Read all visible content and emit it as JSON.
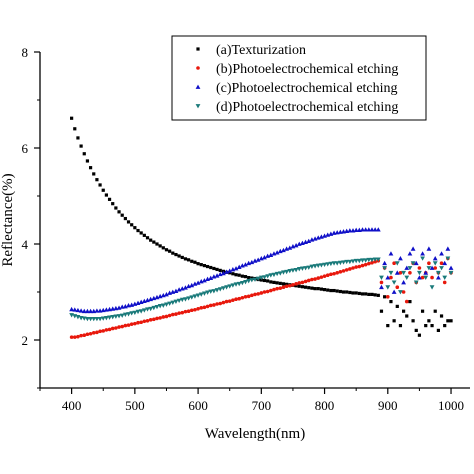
{
  "chart_data": {
    "type": "scatter",
    "xlabel": "Wavelength(nm)",
    "ylabel": "Reflectance(%)",
    "xlim": [
      350,
      1030
    ],
    "ylim": [
      1,
      8
    ],
    "x_ticks": [
      400,
      500,
      600,
      700,
      800,
      900,
      1000
    ],
    "y_ticks": [
      2,
      4,
      6,
      8
    ],
    "grid": false,
    "legend_position": "top-right",
    "series": [
      {
        "name": "(a)Texturization",
        "color": "#000000",
        "marker": "square",
        "x": [
          400,
          405,
          410,
          415,
          420,
          425,
          430,
          435,
          440,
          445,
          450,
          455,
          460,
          465,
          470,
          475,
          480,
          485,
          490,
          495,
          500,
          505,
          510,
          515,
          520,
          525,
          530,
          535,
          540,
          545,
          550,
          555,
          560,
          565,
          570,
          575,
          580,
          585,
          590,
          595,
          600,
          605,
          610,
          615,
          620,
          625,
          630,
          635,
          640,
          645,
          650,
          655,
          660,
          665,
          670,
          675,
          680,
          685,
          690,
          695,
          700,
          705,
          710,
          715,
          720,
          725,
          730,
          735,
          740,
          745,
          750,
          755,
          760,
          765,
          770,
          775,
          780,
          785,
          790,
          795,
          800,
          805,
          810,
          815,
          820,
          825,
          830,
          835,
          840,
          845,
          850,
          855,
          860,
          865,
          870,
          875,
          880,
          885,
          890,
          895,
          900,
          905,
          910,
          915,
          920,
          925,
          930,
          935,
          940,
          945,
          950,
          955,
          960,
          965,
          970,
          975,
          980,
          985,
          990,
          995,
          1000
        ],
        "y": [
          6.62,
          6.4,
          6.21,
          6.04,
          5.88,
          5.73,
          5.59,
          5.46,
          5.34,
          5.23,
          5.12,
          5.02,
          4.93,
          4.84,
          4.75,
          4.67,
          4.6,
          4.53,
          4.46,
          4.4,
          4.34,
          4.28,
          4.23,
          4.18,
          4.13,
          4.08,
          4.04,
          4.0,
          3.96,
          3.92,
          3.88,
          3.85,
          3.81,
          3.78,
          3.75,
          3.72,
          3.69,
          3.67,
          3.64,
          3.62,
          3.59,
          3.57,
          3.55,
          3.53,
          3.51,
          3.49,
          3.47,
          3.45,
          3.43,
          3.41,
          3.4,
          3.38,
          3.36,
          3.35,
          3.33,
          3.32,
          3.3,
          3.29,
          3.28,
          3.26,
          3.25,
          3.24,
          3.23,
          3.21,
          3.2,
          3.19,
          3.18,
          3.17,
          3.16,
          3.15,
          3.14,
          3.13,
          3.12,
          3.11,
          3.1,
          3.09,
          3.08,
          3.07,
          3.07,
          3.06,
          3.05,
          3.04,
          3.03,
          3.03,
          3.02,
          3.01,
          3.0,
          3.0,
          2.99,
          2.98,
          2.98,
          2.97,
          2.96,
          2.96,
          2.95,
          2.95,
          2.94,
          2.93,
          2.6,
          2.9,
          2.3,
          2.8,
          2.4,
          2.7,
          2.3,
          2.6,
          2.5,
          2.8,
          2.4,
          2.2,
          2.1,
          2.6,
          2.3,
          2.4,
          2.3,
          2.6,
          2.2,
          2.5,
          2.3,
          2.4,
          2.4
        ]
      },
      {
        "name": "(b)Photoelectrochemical etching",
        "color": "#e8180c",
        "marker": "circle",
        "x": [
          400,
          405,
          410,
          415,
          420,
          425,
          430,
          435,
          440,
          445,
          450,
          455,
          460,
          465,
          470,
          475,
          480,
          485,
          490,
          495,
          500,
          505,
          510,
          515,
          520,
          525,
          530,
          535,
          540,
          545,
          550,
          555,
          560,
          565,
          570,
          575,
          580,
          585,
          590,
          595,
          600,
          605,
          610,
          615,
          620,
          625,
          630,
          635,
          640,
          645,
          650,
          655,
          660,
          665,
          670,
          675,
          680,
          685,
          690,
          695,
          700,
          705,
          710,
          715,
          720,
          725,
          730,
          735,
          740,
          745,
          750,
          755,
          760,
          765,
          770,
          775,
          780,
          785,
          790,
          795,
          800,
          805,
          810,
          815,
          820,
          825,
          830,
          835,
          840,
          845,
          850,
          855,
          860,
          865,
          870,
          875,
          880,
          885,
          890,
          895,
          900,
          905,
          910,
          915,
          920,
          925,
          930,
          935,
          940,
          945,
          950,
          955,
          960,
          965,
          970,
          975,
          980,
          985,
          990,
          995,
          1000
        ],
        "y": [
          2.06,
          2.06,
          2.07,
          2.09,
          2.1,
          2.12,
          2.13,
          2.15,
          2.16,
          2.18,
          2.19,
          2.21,
          2.22,
          2.24,
          2.25,
          2.27,
          2.28,
          2.3,
          2.31,
          2.33,
          2.34,
          2.36,
          2.37,
          2.39,
          2.4,
          2.42,
          2.43,
          2.45,
          2.46,
          2.48,
          2.49,
          2.51,
          2.53,
          2.54,
          2.56,
          2.57,
          2.59,
          2.6,
          2.62,
          2.63,
          2.65,
          2.67,
          2.68,
          2.7,
          2.72,
          2.73,
          2.75,
          2.76,
          2.78,
          2.8,
          2.81,
          2.83,
          2.85,
          2.86,
          2.88,
          2.9,
          2.91,
          2.93,
          2.95,
          2.96,
          2.98,
          3.0,
          3.01,
          3.03,
          3.05,
          3.07,
          3.08,
          3.1,
          3.12,
          3.13,
          3.15,
          3.17,
          3.19,
          3.2,
          3.22,
          3.24,
          3.26,
          3.27,
          3.29,
          3.31,
          3.33,
          3.35,
          3.37,
          3.38,
          3.4,
          3.42,
          3.44,
          3.46,
          3.48,
          3.5,
          3.52,
          3.53,
          3.55,
          3.57,
          3.59,
          3.61,
          3.63,
          3.65,
          3.2,
          3.5,
          2.9,
          3.3,
          3.6,
          3.1,
          3.4,
          3.0,
          2.8,
          3.4,
          3.6,
          3.2,
          3.5,
          3.3,
          3.4,
          3.6,
          3.3,
          3.5,
          3.4,
          3.6,
          3.2,
          3.7,
          3.4
        ]
      },
      {
        "name": "(c)Photoelectrochemical etching",
        "color": "#1010c8",
        "marker": "triangle-up",
        "x": [
          400,
          405,
          410,
          415,
          420,
          425,
          430,
          435,
          440,
          445,
          450,
          455,
          460,
          465,
          470,
          475,
          480,
          485,
          490,
          495,
          500,
          505,
          510,
          515,
          520,
          525,
          530,
          535,
          540,
          545,
          550,
          555,
          560,
          565,
          570,
          575,
          580,
          585,
          590,
          595,
          600,
          605,
          610,
          615,
          620,
          625,
          630,
          635,
          640,
          645,
          650,
          655,
          660,
          665,
          670,
          675,
          680,
          685,
          690,
          695,
          700,
          705,
          710,
          715,
          720,
          725,
          730,
          735,
          740,
          745,
          750,
          755,
          760,
          765,
          770,
          775,
          780,
          785,
          790,
          795,
          800,
          805,
          810,
          815,
          820,
          825,
          830,
          835,
          840,
          845,
          850,
          855,
          860,
          865,
          870,
          875,
          880,
          885,
          890,
          895,
          900,
          905,
          910,
          915,
          920,
          925,
          930,
          935,
          940,
          945,
          950,
          955,
          960,
          965,
          970,
          975,
          980,
          985,
          990,
          995,
          1000
        ],
        "y": [
          2.64,
          2.63,
          2.62,
          2.61,
          2.6,
          2.6,
          2.6,
          2.6,
          2.61,
          2.61,
          2.62,
          2.63,
          2.64,
          2.65,
          2.66,
          2.67,
          2.69,
          2.7,
          2.72,
          2.73,
          2.75,
          2.77,
          2.79,
          2.81,
          2.83,
          2.85,
          2.87,
          2.89,
          2.91,
          2.93,
          2.95,
          2.98,
          3.0,
          3.02,
          3.05,
          3.07,
          3.09,
          3.12,
          3.14,
          3.17,
          3.19,
          3.22,
          3.24,
          3.27,
          3.29,
          3.32,
          3.34,
          3.37,
          3.39,
          3.42,
          3.44,
          3.47,
          3.49,
          3.52,
          3.55,
          3.57,
          3.6,
          3.62,
          3.65,
          3.67,
          3.7,
          3.72,
          3.75,
          3.77,
          3.8,
          3.82,
          3.85,
          3.87,
          3.9,
          3.92,
          3.95,
          3.97,
          4.0,
          4.02,
          4.04,
          4.06,
          4.09,
          4.11,
          4.13,
          4.15,
          4.17,
          4.19,
          4.21,
          4.23,
          4.24,
          4.25,
          4.26,
          4.27,
          4.28,
          4.28,
          4.29,
          4.29,
          4.3,
          4.3,
          4.3,
          4.3,
          4.3,
          4.3,
          3.1,
          3.6,
          3.3,
          3.8,
          3.0,
          3.4,
          3.7,
          3.2,
          3.5,
          3.8,
          3.9,
          3.6,
          3.3,
          3.8,
          3.4,
          3.9,
          3.5,
          3.7,
          3.3,
          3.8,
          3.6,
          3.9,
          3.5
        ]
      },
      {
        "name": "(d)Photoelectrochemical etching",
        "color": "#1a7a7a",
        "marker": "triangle-down",
        "x": [
          400,
          405,
          410,
          415,
          420,
          425,
          430,
          435,
          440,
          445,
          450,
          455,
          460,
          465,
          470,
          475,
          480,
          485,
          490,
          495,
          500,
          505,
          510,
          515,
          520,
          525,
          530,
          535,
          540,
          545,
          550,
          555,
          560,
          565,
          570,
          575,
          580,
          585,
          590,
          595,
          600,
          605,
          610,
          615,
          620,
          625,
          630,
          635,
          640,
          645,
          650,
          655,
          660,
          665,
          670,
          675,
          680,
          685,
          690,
          695,
          700,
          705,
          710,
          715,
          720,
          725,
          730,
          735,
          740,
          745,
          750,
          755,
          760,
          765,
          770,
          775,
          780,
          785,
          790,
          795,
          800,
          805,
          810,
          815,
          820,
          825,
          830,
          835,
          840,
          845,
          850,
          855,
          860,
          865,
          870,
          875,
          880,
          885,
          890,
          895,
          900,
          905,
          910,
          915,
          920,
          925,
          930,
          935,
          940,
          945,
          950,
          955,
          960,
          965,
          970,
          975,
          980,
          985,
          990,
          995,
          1000
        ],
        "y": [
          2.52,
          2.5,
          2.48,
          2.46,
          2.45,
          2.44,
          2.44,
          2.44,
          2.44,
          2.44,
          2.45,
          2.46,
          2.47,
          2.48,
          2.49,
          2.5,
          2.51,
          2.53,
          2.54,
          2.56,
          2.57,
          2.59,
          2.6,
          2.62,
          2.64,
          2.65,
          2.67,
          2.69,
          2.71,
          2.72,
          2.74,
          2.76,
          2.78,
          2.8,
          2.82,
          2.84,
          2.85,
          2.87,
          2.89,
          2.91,
          2.93,
          2.95,
          2.97,
          2.99,
          3.01,
          3.02,
          3.04,
          3.06,
          3.08,
          3.1,
          3.12,
          3.14,
          3.16,
          3.17,
          3.19,
          3.21,
          3.23,
          3.25,
          3.26,
          3.28,
          3.3,
          3.31,
          3.33,
          3.35,
          3.36,
          3.38,
          3.39,
          3.41,
          3.42,
          3.44,
          3.45,
          3.46,
          3.48,
          3.49,
          3.5,
          3.51,
          3.53,
          3.54,
          3.55,
          3.56,
          3.57,
          3.58,
          3.59,
          3.6,
          3.6,
          3.61,
          3.62,
          3.63,
          3.63,
          3.64,
          3.65,
          3.65,
          3.66,
          3.66,
          3.67,
          3.67,
          3.68,
          3.68,
          3.3,
          3.5,
          3.1,
          3.4,
          3.2,
          3.6,
          3.0,
          3.4,
          3.3,
          3.5,
          3.6,
          3.2,
          3.4,
          3.7,
          3.3,
          3.5,
          3.1,
          3.6,
          3.4,
          3.5,
          3.3,
          3.7,
          3.4
        ]
      }
    ]
  }
}
